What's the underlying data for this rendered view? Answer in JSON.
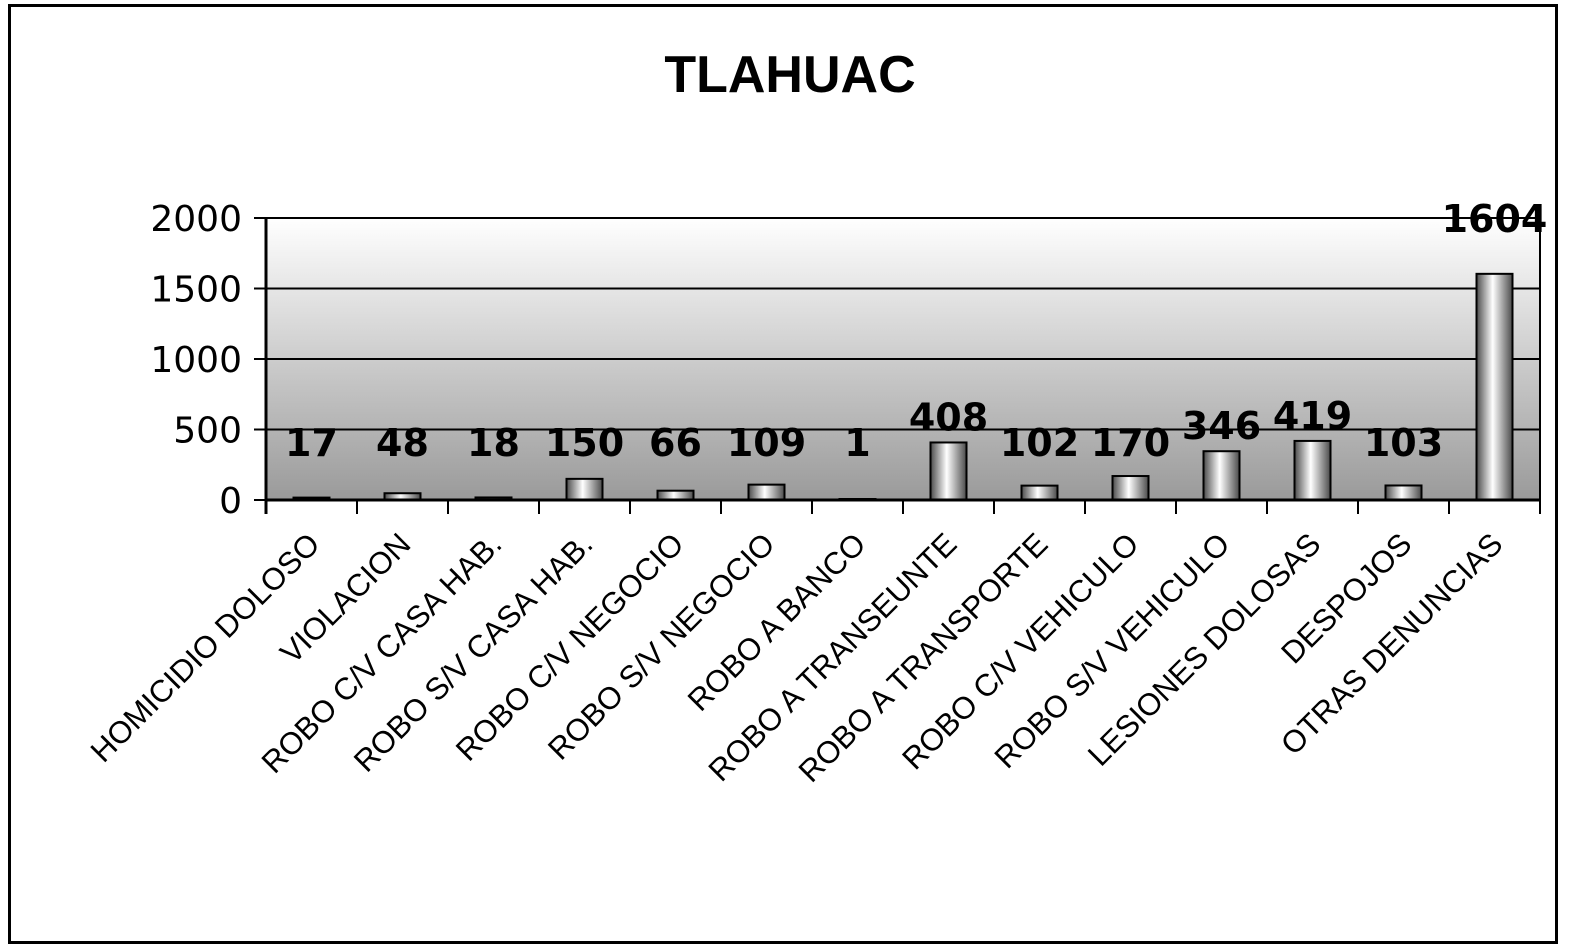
{
  "chart_data": {
    "type": "bar",
    "title": "TLAHUAC",
    "xlabel": "",
    "ylabel": "",
    "ylim": [
      0,
      2000
    ],
    "yticks": [
      "0",
      "500",
      "1000",
      "1500",
      "2000"
    ],
    "grid": true,
    "legend": "none",
    "categories": [
      "HOMICIDIO DOLOSO",
      "VIOLACION",
      "ROBO C/V CASA HAB.",
      "ROBO S/V CASA HAB.",
      "ROBO C/V NEGOCIO",
      "ROBO S/V NEGOCIO",
      "ROBO A BANCO",
      "ROBO A TRANSEUNTE",
      "ROBO A TRANSPORTE",
      "ROBO C/V VEHICULO",
      "ROBO S/V VEHICULO",
      "LESIONES DOLOSAS",
      "DESPOJOS",
      "OTRAS DENUNCIAS"
    ],
    "values": [
      17,
      48,
      18,
      150,
      66,
      109,
      1,
      408,
      102,
      170,
      346,
      419,
      103,
      1604
    ],
    "data_labels": [
      "17",
      "48",
      "18",
      "150",
      "66",
      "109",
      "1",
      "408",
      "102",
      "170",
      "346",
      "419",
      "103",
      "1604"
    ],
    "colors": {
      "plot_top": "#ffffff",
      "plot_bottom": "#9a9a9a",
      "bar_dark": "#4a4a4a",
      "bar_light": "#ffffff",
      "axis": "#000000"
    }
  }
}
